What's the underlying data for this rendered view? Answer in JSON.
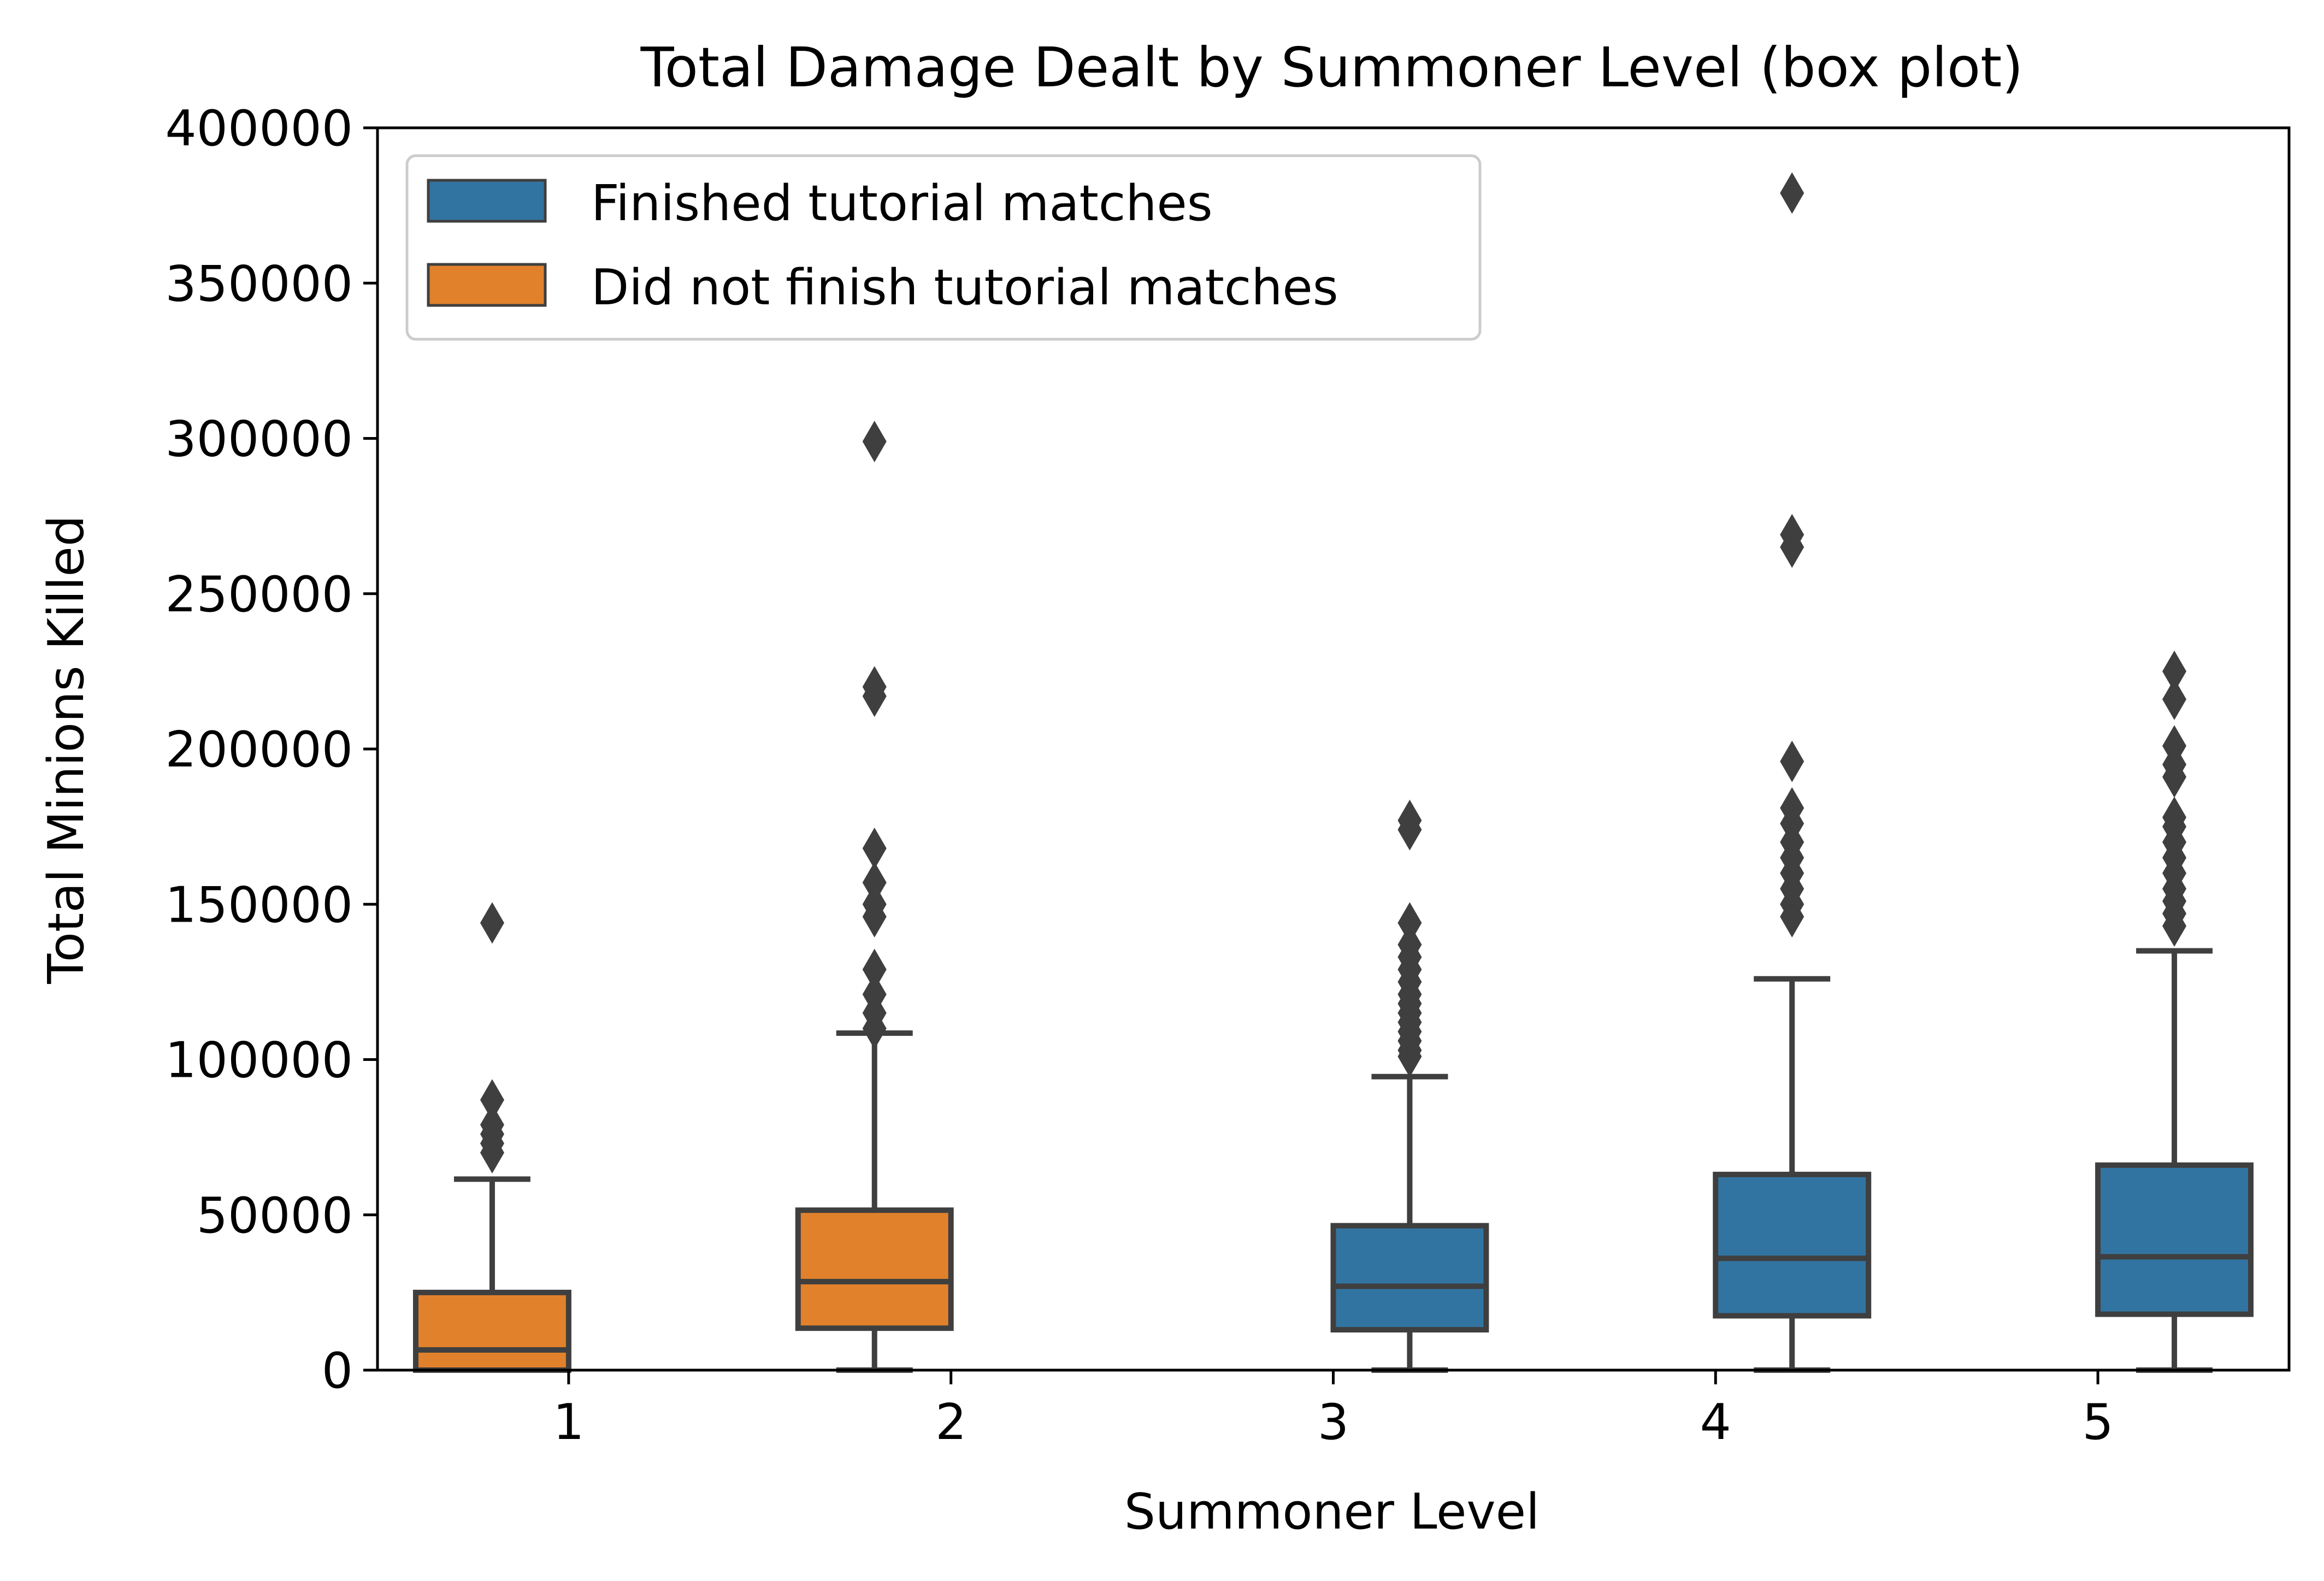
{
  "chart_data": {
    "type": "box",
    "title": "Total Damage Dealt by Summoner Level (box plot)",
    "xlabel": "Summoner Level",
    "ylabel": "Total Minions Killed",
    "categories": [
      "1",
      "2",
      "3",
      "4",
      "5"
    ],
    "ylim": [
      0,
      400000
    ],
    "yticks": [
      0,
      50000,
      100000,
      150000,
      200000,
      250000,
      300000,
      350000,
      400000
    ],
    "ytick_labels": [
      "0",
      "50000",
      "100000",
      "150000",
      "200000",
      "250000",
      "300000",
      "350000",
      "400000"
    ],
    "grid": false,
    "legend_position": "top-left",
    "series": [
      {
        "name": "Finished tutorial matches",
        "color": "#3274a1",
        "boxes": [
          null,
          null,
          {
            "whisker_low": 0,
            "q1": 13000,
            "median": 27000,
            "q3": 46500,
            "whisker_high": 94500,
            "outliers": [
              101000,
              103000,
              106000,
              109000,
              112000,
              115000,
              118000,
              121000,
              125000,
              129000,
              133000,
              137000,
              144000,
              174000,
              177000
            ]
          },
          {
            "whisker_low": 0,
            "q1": 17500,
            "median": 36000,
            "q3": 63000,
            "whisker_high": 126000,
            "outliers": [
              146000,
              150000,
              155000,
              160000,
              165000,
              170000,
              176000,
              181000,
              196000,
              265000,
              269000,
              379000
            ]
          },
          {
            "whisker_low": 0,
            "q1": 18000,
            "median": 36500,
            "q3": 66000,
            "whisker_high": 135000,
            "outliers": [
              143000,
              147000,
              151000,
              155000,
              160000,
              165000,
              170000,
              175000,
              178000,
              191000,
              195000,
              201000,
              216000,
              225000
            ]
          }
        ]
      },
      {
        "name": "Did not finish tutorial matches",
        "color": "#e1812c",
        "boxes": [
          {
            "whisker_low": 0,
            "q1": 0,
            "median": 6500,
            "q3": 25000,
            "whisker_high": 61500,
            "outliers": [
              70000,
              73000,
              76000,
              79000,
              87000,
              144000
            ]
          },
          {
            "whisker_low": 0,
            "q1": 13500,
            "median": 28500,
            "q3": 51500,
            "whisker_high": 108500,
            "outliers": [
              110000,
              115000,
              121000,
              129000,
              146000,
              150000,
              157000,
              168000,
              217000,
              220000,
              299000
            ]
          },
          null,
          null,
          null
        ]
      }
    ]
  }
}
